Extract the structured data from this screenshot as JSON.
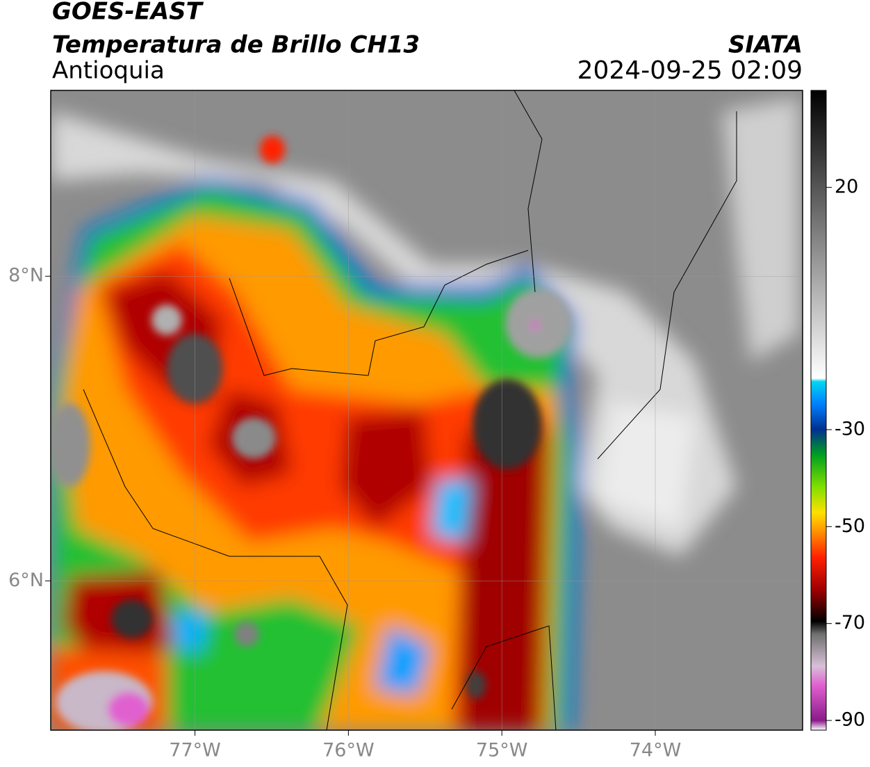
{
  "header": {
    "satellite": "GOES-EAST",
    "product": "Temperatura de Brillo CH13",
    "region": "Antioquia",
    "source": "SIATA",
    "datetime": "2024-09-25 02:09"
  },
  "map": {
    "xlim": [
      -77.94,
      -73.04
    ],
    "ylim": [
      5.02,
      9.22
    ],
    "xticks": [
      {
        "value": -77,
        "label": "77°W"
      },
      {
        "value": -76,
        "label": "76°W"
      },
      {
        "value": -75,
        "label": "75°W"
      },
      {
        "value": -74,
        "label": "74°W"
      }
    ],
    "yticks": [
      {
        "value": 8,
        "label": "8°N"
      },
      {
        "value": 6,
        "label": "6°N"
      }
    ],
    "grid": true
  },
  "colorbar": {
    "lim": [
      -92,
      40
    ],
    "ticks": [
      20,
      -30,
      -50,
      -70,
      -90
    ]
  }
}
